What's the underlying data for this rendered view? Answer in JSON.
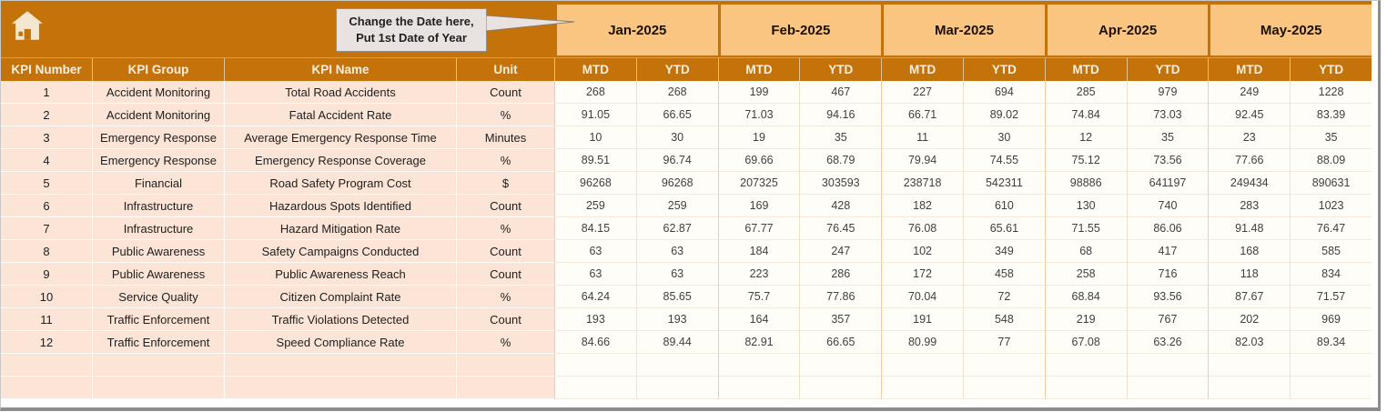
{
  "header": {
    "callout": {
      "line1": "Change the Date here,",
      "line2": "Put 1st Date of Year"
    },
    "months": [
      "Jan-2025",
      "Feb-2025",
      "Mar-2025",
      "Apr-2025",
      "May-2025"
    ],
    "sub_headers": [
      "MTD",
      "YTD"
    ]
  },
  "columns": [
    "KPI Number",
    "KPI Group",
    "KPI Name",
    "Unit"
  ],
  "rows": [
    {
      "number": 1,
      "group": "Accident Monitoring",
      "name": "Total Road Accidents",
      "unit": "Count",
      "values": [
        268,
        268,
        199,
        467,
        227,
        694,
        285,
        979,
        249,
        1228
      ]
    },
    {
      "number": 2,
      "group": "Accident Monitoring",
      "name": "Fatal Accident Rate",
      "unit": "%",
      "values": [
        91.05,
        66.65,
        71.03,
        94.16,
        66.71,
        89.02,
        74.84,
        73.03,
        92.45,
        83.39
      ]
    },
    {
      "number": 3,
      "group": "Emergency Response",
      "name": "Average Emergency Response Time",
      "unit": "Minutes",
      "values": [
        10,
        30,
        19,
        35,
        11,
        30,
        12,
        35,
        23,
        35
      ]
    },
    {
      "number": 4,
      "group": "Emergency Response",
      "name": "Emergency Response Coverage",
      "unit": "%",
      "values": [
        89.51,
        96.74,
        69.66,
        68.79,
        79.94,
        74.55,
        75.12,
        73.56,
        77.66,
        88.09
      ]
    },
    {
      "number": 5,
      "group": "Financial",
      "name": "Road Safety Program Cost",
      "unit": "$",
      "values": [
        96268,
        96268,
        207325,
        303593,
        238718,
        542311,
        98886,
        641197,
        249434,
        890631
      ]
    },
    {
      "number": 6,
      "group": "Infrastructure",
      "name": "Hazardous Spots Identified",
      "unit": "Count",
      "values": [
        259,
        259,
        169,
        428,
        182,
        610,
        130,
        740,
        283,
        1023
      ]
    },
    {
      "number": 7,
      "group": "Infrastructure",
      "name": "Hazard Mitigation Rate",
      "unit": "%",
      "values": [
        84.15,
        62.87,
        67.77,
        76.45,
        76.08,
        65.61,
        71.55,
        86.06,
        91.48,
        76.47
      ]
    },
    {
      "number": 8,
      "group": "Public Awareness",
      "name": "Safety Campaigns Conducted",
      "unit": "Count",
      "values": [
        63,
        63,
        184,
        247,
        102,
        349,
        68,
        417,
        168,
        585
      ]
    },
    {
      "number": 9,
      "group": "Public Awareness",
      "name": "Public Awareness Reach",
      "unit": "Count",
      "values": [
        63,
        63,
        223,
        286,
        172,
        458,
        258,
        716,
        118,
        834
      ]
    },
    {
      "number": 10,
      "group": "Service Quality",
      "name": "Citizen Complaint Rate",
      "unit": "%",
      "values": [
        64.24,
        85.65,
        75.7,
        77.86,
        70.04,
        72,
        68.84,
        93.56,
        87.67,
        71.57
      ]
    },
    {
      "number": 11,
      "group": "Traffic Enforcement",
      "name": "Traffic Violations Detected",
      "unit": "Count",
      "values": [
        193,
        193,
        164,
        357,
        191,
        548,
        219,
        767,
        202,
        969
      ]
    },
    {
      "number": 12,
      "group": "Traffic Enforcement",
      "name": "Speed Compliance Rate",
      "unit": "%",
      "values": [
        84.66,
        89.44,
        82.91,
        66.65,
        80.99,
        77,
        67.08,
        63.26,
        82.03,
        89.34
      ]
    }
  ],
  "empty_row_count": 2,
  "colors": {
    "header_orange": "#C4730B",
    "month_band": "#F9C580",
    "row_label_bg": "#FCE4D6",
    "data_cell_bg": "#FFFDF7",
    "callout_bg": "#E8E3E1",
    "frame_gray": "#8D8D8D"
  }
}
